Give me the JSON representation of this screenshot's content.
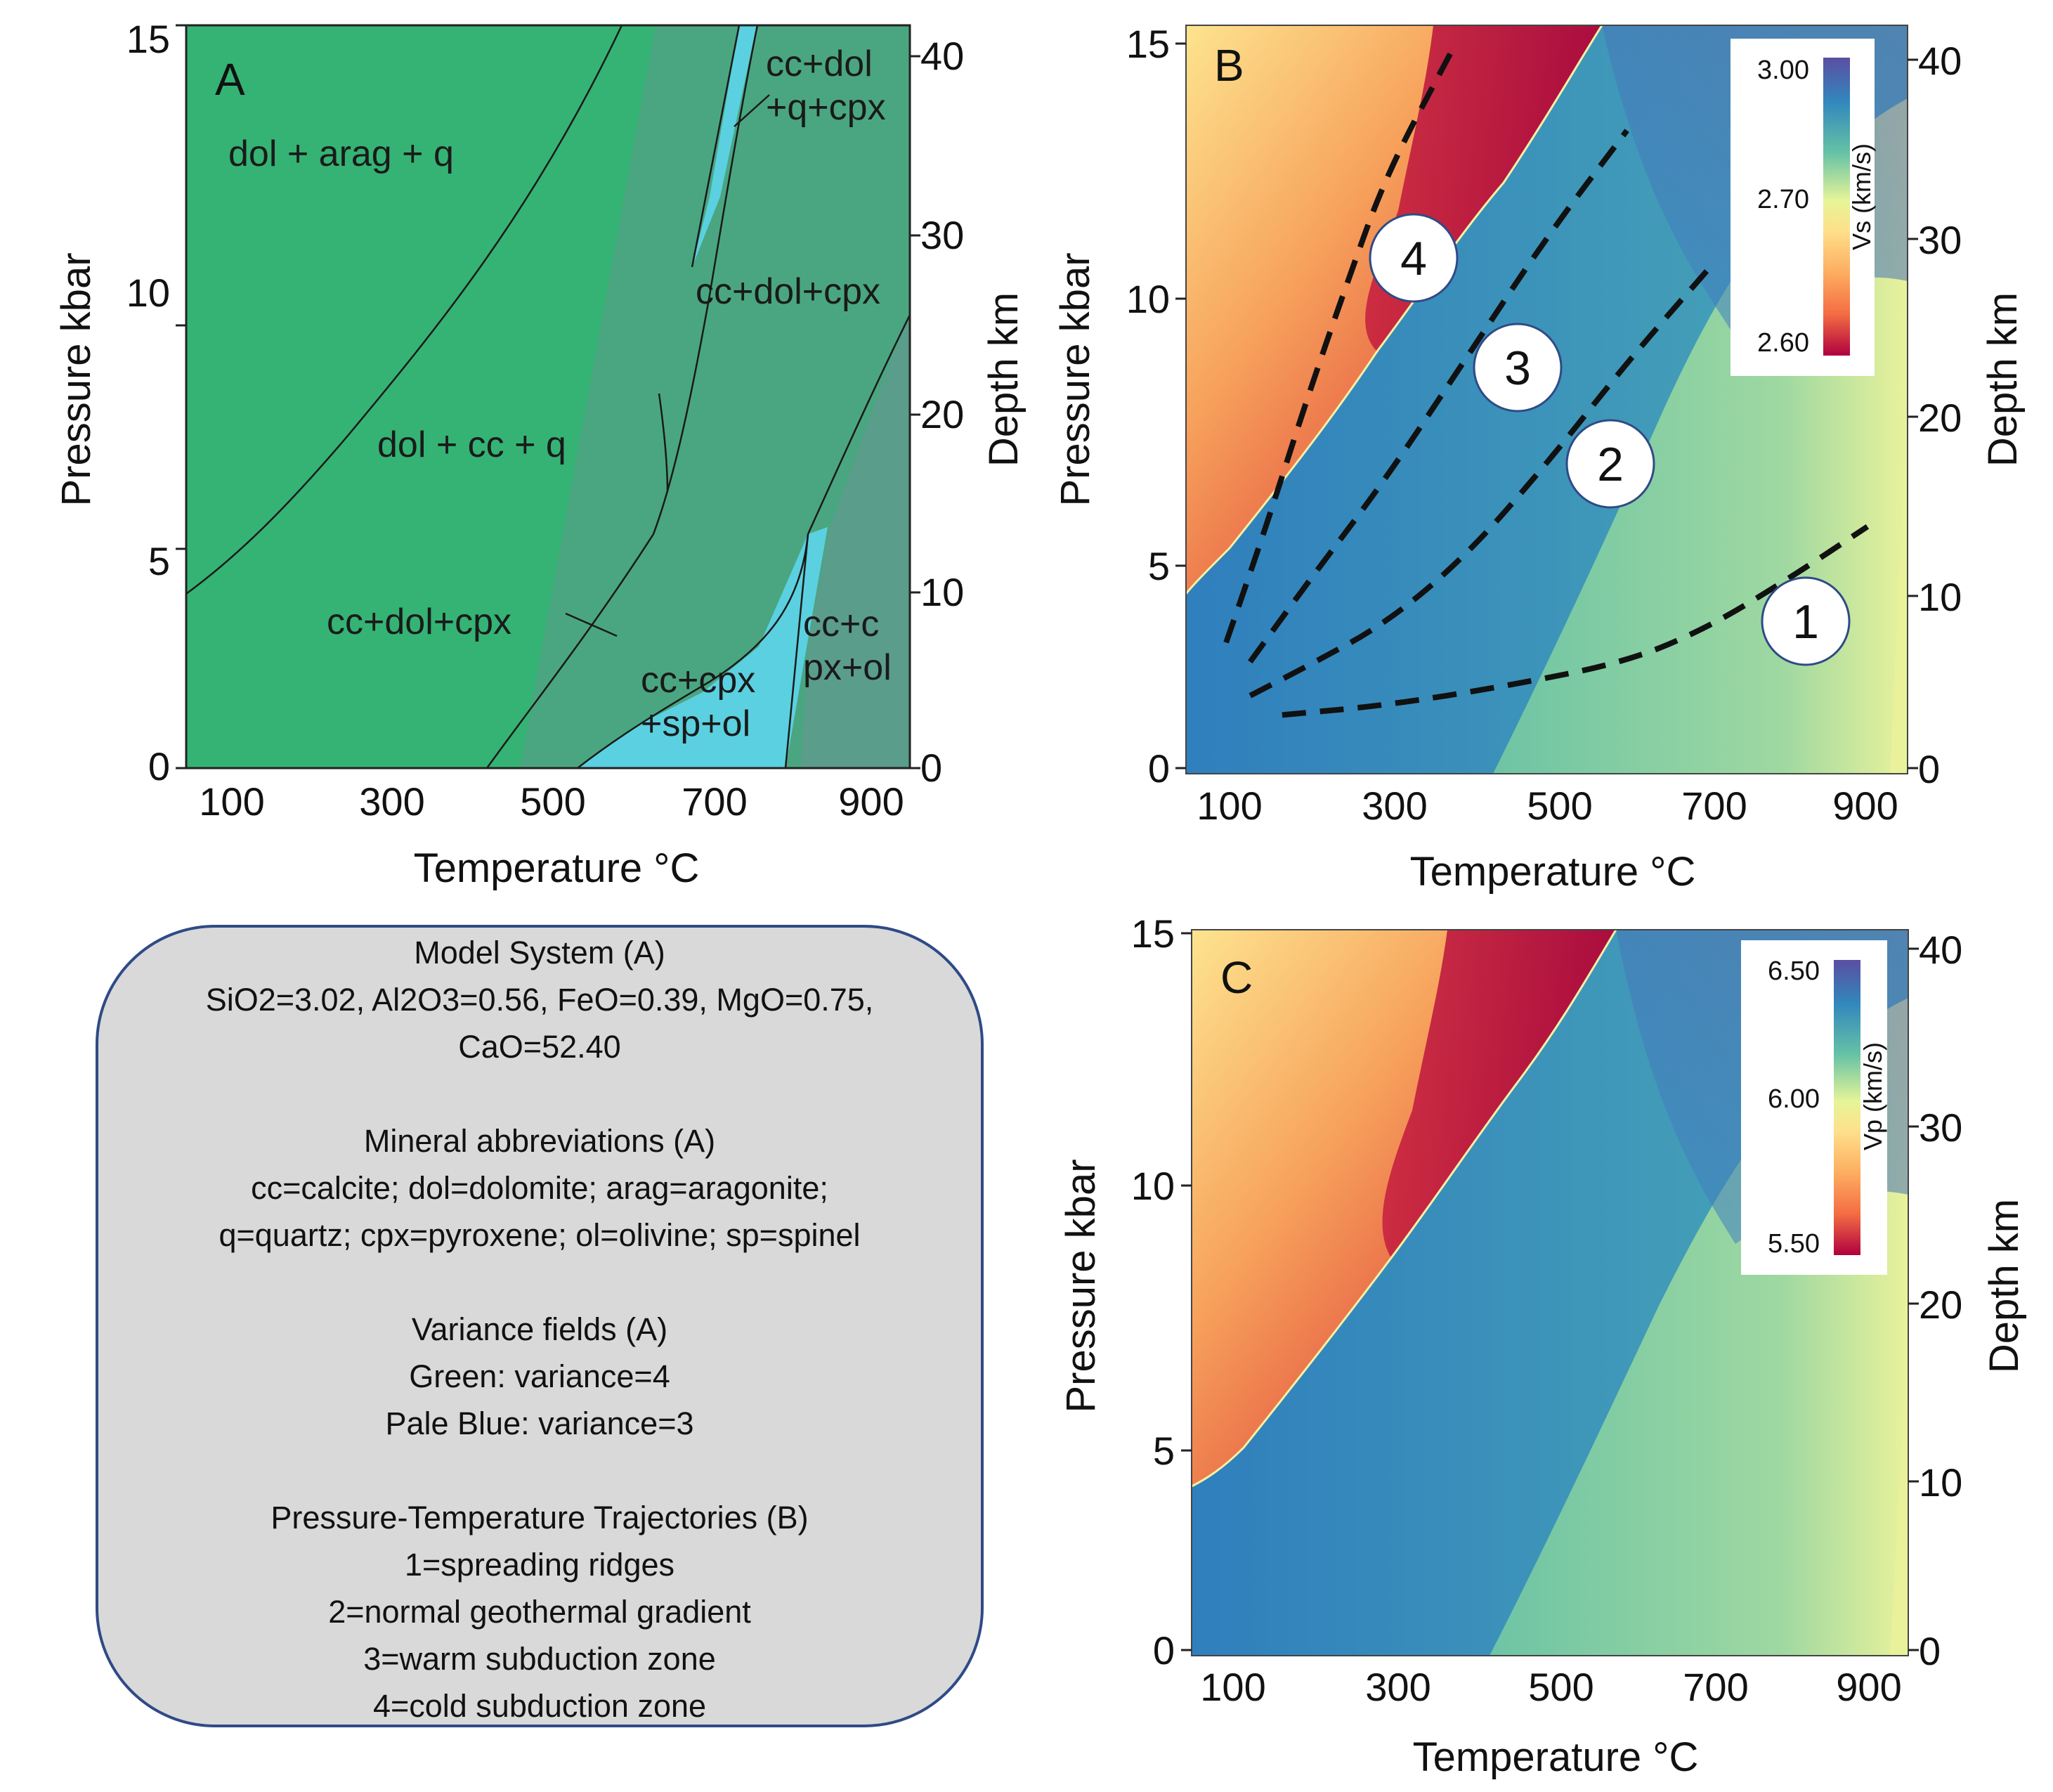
{
  "panels": {
    "A": {
      "label": "A",
      "xlabel": "Temperature °C",
      "ylabel": "Pressure kbar",
      "y2label": "Depth km",
      "xticks": [
        "100",
        "300",
        "500",
        "700",
        "900"
      ],
      "yticks": [
        "0",
        "5",
        "10",
        "15"
      ],
      "y2ticks": [
        "0",
        "10",
        "20",
        "30",
        "40"
      ],
      "fields": {
        "f1": "dol + arag + q",
        "f2": "dol + cc + q",
        "f3": "cc+dol+cpx",
        "f4": "cc+dol+cpx",
        "f5a": "cc+dol",
        "f5b": "+q+cpx",
        "f6a": "cc+cpx",
        "f6b": "+sp+ol",
        "f7a": "cc+c",
        "f7b": "px+ol"
      },
      "colors": {
        "variance4": "#35b374",
        "variance4_dark": "#4aa681",
        "variance4_darker": "#5a9d8a",
        "variance3": "#5bd0e0"
      }
    },
    "B": {
      "label": "B",
      "xlabel": "Temperature °C",
      "ylabel": "Pressure kbar",
      "y2label": "Depth km",
      "xticks": [
        "100",
        "300",
        "500",
        "700",
        "900"
      ],
      "yticks": [
        "0",
        "5",
        "10",
        "15"
      ],
      "y2ticks": [
        "0",
        "10",
        "20",
        "30",
        "40"
      ],
      "colorbar": {
        "label": "Vs (km/s)",
        "ticks": [
          "3.00",
          "2.70",
          "2.60"
        ]
      },
      "trajectory_labels": [
        "1",
        "2",
        "3",
        "4"
      ]
    },
    "C": {
      "label": "C",
      "xlabel": "Temperature °C",
      "ylabel": "Pressure kbar",
      "y2label": "Depth km",
      "xticks": [
        "100",
        "300",
        "500",
        "700",
        "900"
      ],
      "yticks": [
        "0",
        "5",
        "10",
        "15"
      ],
      "y2ticks": [
        "0",
        "10",
        "20",
        "30",
        "40"
      ],
      "colorbar": {
        "label": "Vp (km/s)",
        "ticks": [
          "6.50",
          "6.00",
          "5.50"
        ]
      }
    }
  },
  "legend": {
    "model_title": "Model System (A)",
    "model_line1": "SiO2=3.02, Al2O3=0.56, FeO=0.39, MgO=0.75,",
    "model_line2": "CaO=52.40",
    "abbr_title": "Mineral abbreviations (A)",
    "abbr_line1": "cc=calcite; dol=dolomite; arag=aragonite;",
    "abbr_line2": "q=quartz; cpx=pyroxene; ol=olivine; sp=spinel",
    "var_title": "Variance fields (A)",
    "var_line1": "Green: variance=4",
    "var_line2": "Pale Blue: variance=3",
    "traj_title": "Pressure-Temperature Trajectories (B)",
    "traj_1": "1=spreading ridges",
    "traj_2": "2=normal geothermal gradient",
    "traj_3": "3=warm subduction zone",
    "traj_4": "4=cold subduction zone"
  },
  "chart_data": [
    {
      "type": "area",
      "panel": "A",
      "x_axis": "Temperature °C",
      "y_axis": "Pressure kbar",
      "xlim": [
        50,
        950
      ],
      "ylim": [
        0,
        15
      ],
      "phase_boundaries": [
        {
          "points": [
            [
              50,
              3.5
            ],
            [
              130,
              4.5
            ],
            [
              230,
              5.8
            ],
            [
              350,
              8.0
            ],
            [
              530,
              12.7
            ],
            [
              590,
              15.0
            ]
          ]
        },
        {
          "points": [
            [
              420,
              0.0
            ],
            [
              470,
              1.8
            ],
            [
              560,
              4.8
            ],
            [
              640,
              8.0
            ],
            [
              710,
              11.5
            ],
            [
              780,
              15.0
            ]
          ]
        },
        {
          "points": [
            [
              520,
              0.0
            ],
            [
              560,
              0.9
            ],
            [
              620,
              2.3
            ],
            [
              700,
              3.4
            ],
            [
              760,
              4.4
            ],
            [
              830,
              5.0
            ]
          ]
        },
        {
          "points": [
            [
              640,
              8.0
            ],
            [
              660,
              9.0
            ],
            [
              710,
              11.5
            ]
          ]
        },
        {
          "points": [
            [
              790,
              0.0
            ],
            [
              800,
              2.5
            ],
            [
              820,
              4.7
            ]
          ]
        }
      ],
      "variance_fields": [
        {
          "name": "dol + arag + q",
          "variance": 4
        },
        {
          "name": "dol + cc + q",
          "variance": 4
        },
        {
          "name": "cc+dol+cpx",
          "variance": 4
        },
        {
          "name": "cc+dol+q+cpx",
          "variance": 3
        },
        {
          "name": "cc+cpx+sp+ol",
          "variance": 3
        },
        {
          "name": "cc+cpx+ol",
          "variance": 4
        }
      ]
    },
    {
      "type": "heatmap",
      "panel": "B",
      "quantity": "Vs (km/s)",
      "x_axis": "Temperature °C",
      "y_axis": "Pressure kbar",
      "xlim": [
        50,
        950
      ],
      "ylim": [
        0,
        15
      ],
      "color_range": [
        2.6,
        3.0
      ],
      "trajectories": [
        {
          "label": "1",
          "points": [
            [
              170,
              1.1
            ],
            [
              300,
              1.3
            ],
            [
              450,
              1.7
            ],
            [
              600,
              2.2
            ],
            [
              700,
              2.9
            ],
            [
              800,
              3.9
            ],
            [
              900,
              5.0
            ]
          ]
        },
        {
          "label": "2",
          "points": [
            [
              130,
              1.5
            ],
            [
              200,
              2.1
            ],
            [
              300,
              3.0
            ],
            [
              400,
              4.4
            ],
            [
              500,
              6.3
            ],
            [
              600,
              8.4
            ],
            [
              700,
              10.3
            ]
          ]
        },
        {
          "label": "3",
          "points": [
            [
              130,
              2.2
            ],
            [
              200,
              3.8
            ],
            [
              300,
              6.0
            ],
            [
              400,
              8.5
            ],
            [
              500,
              11.0
            ],
            [
              600,
              13.2
            ]
          ]
        },
        {
          "label": "4",
          "points": [
            [
              100,
              2.6
            ],
            [
              150,
              5.0
            ],
            [
              200,
              7.6
            ],
            [
              250,
              10.0
            ],
            [
              300,
              12.3
            ],
            [
              380,
              14.8
            ]
          ]
        }
      ]
    },
    {
      "type": "heatmap",
      "panel": "C",
      "quantity": "Vp (km/s)",
      "x_axis": "Temperature °C",
      "y_axis": "Pressure kbar",
      "xlim": [
        50,
        950
      ],
      "ylim": [
        0,
        15
      ],
      "color_range": [
        5.5,
        6.5
      ]
    }
  ]
}
